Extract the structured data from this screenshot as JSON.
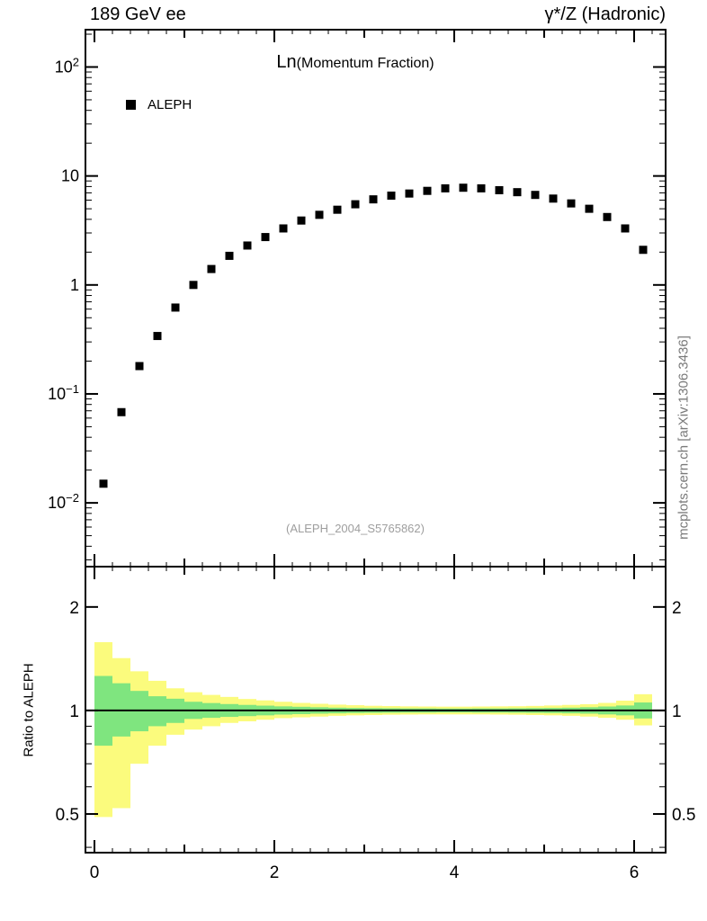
{
  "header": {
    "left": "189 GeV ee",
    "right": "γ*/Z (Hadronic)"
  },
  "plot_title": {
    "main": "Ln",
    "sub": "(Momentum Fraction)"
  },
  "legend": [
    {
      "label": "ALEPH",
      "marker": "filled-square",
      "color": "#000000"
    }
  ],
  "watermark": "(ALEPH_2004_S5765862)",
  "side_note": "mcplots.cern.ch [arXiv:1306.3436]",
  "ratio_ylabel": "Ratio to ALEPH",
  "colors": {
    "band_outer": "#fbfb7d",
    "band_inner": "#7fe57f",
    "marker": "#000000",
    "frame": "#000000",
    "watermark": "#9e9e9e",
    "side_note": "#7a7a7a"
  },
  "chart_data": [
    {
      "type": "scatter",
      "title": "Ln(Momentum Fraction)",
      "xlabel": "",
      "ylabel": "",
      "xlim": [
        -0.1,
        6.35
      ],
      "ylog": true,
      "ylim": [
        0.0026,
        220
      ],
      "xticks": [
        0,
        2,
        4,
        6
      ],
      "yticks": [
        100,
        10,
        1,
        0.1,
        0.01
      ],
      "grid": false,
      "legend_position": "top-left-inside",
      "series": [
        {
          "name": "ALEPH",
          "marker": "filled-square",
          "color": "#000000",
          "x": [
            0.1,
            0.3,
            0.5,
            0.7,
            0.9,
            1.1,
            1.3,
            1.5,
            1.7,
            1.9,
            2.1,
            2.3,
            2.5,
            2.7,
            2.9,
            3.1,
            3.3,
            3.5,
            3.7,
            3.9,
            4.1,
            4.3,
            4.5,
            4.7,
            4.9,
            5.1,
            5.3,
            5.5,
            5.7,
            5.9,
            6.1
          ],
          "y": [
            0.015,
            0.068,
            0.18,
            0.34,
            0.62,
            1.0,
            1.4,
            1.85,
            2.3,
            2.75,
            3.3,
            3.9,
            4.4,
            4.9,
            5.5,
            6.1,
            6.6,
            6.9,
            7.3,
            7.7,
            7.8,
            7.7,
            7.4,
            7.1,
            6.7,
            6.2,
            5.6,
            5.0,
            4.2,
            3.3,
            2.1
          ]
        }
      ]
    },
    {
      "type": "area",
      "title": "Ratio to ALEPH",
      "xlim": [
        -0.1,
        6.35
      ],
      "ylog": true,
      "ylim": [
        0.386,
        2.62
      ],
      "xticks": [
        0,
        2,
        4,
        6
      ],
      "yticks": [
        2,
        1,
        0.5
      ],
      "reference_line": 1,
      "bin_start": 0.0,
      "bin_width": 0.2,
      "bands": {
        "outer": {
          "name": "outer-uncertainty-band",
          "lo": [
            0.49,
            0.52,
            0.7,
            0.79,
            0.85,
            0.88,
            0.9,
            0.92,
            0.93,
            0.94,
            0.95,
            0.955,
            0.96,
            0.965,
            0.968,
            0.97,
            0.972,
            0.973,
            0.974,
            0.974,
            0.974,
            0.974,
            0.973,
            0.972,
            0.97,
            0.968,
            0.965,
            0.96,
            0.952,
            0.94,
            0.905
          ],
          "hi": [
            1.58,
            1.42,
            1.3,
            1.22,
            1.16,
            1.13,
            1.11,
            1.095,
            1.08,
            1.07,
            1.06,
            1.052,
            1.046,
            1.04,
            1.036,
            1.032,
            1.03,
            1.028,
            1.027,
            1.026,
            1.026,
            1.027,
            1.028,
            1.029,
            1.031,
            1.034,
            1.038,
            1.043,
            1.052,
            1.068,
            1.115
          ]
        },
        "inner": {
          "name": "inner-uncertainty-band",
          "lo": [
            0.79,
            0.84,
            0.87,
            0.9,
            0.92,
            0.945,
            0.952,
            0.958,
            0.963,
            0.968,
            0.973,
            0.976,
            0.979,
            0.981,
            0.983,
            0.984,
            0.985,
            0.986,
            0.986,
            0.987,
            0.987,
            0.986,
            0.986,
            0.985,
            0.984,
            0.983,
            0.981,
            0.979,
            0.974,
            0.968,
            0.948
          ],
          "hi": [
            1.26,
            1.2,
            1.14,
            1.1,
            1.082,
            1.06,
            1.051,
            1.044,
            1.038,
            1.033,
            1.028,
            1.025,
            1.022,
            1.019,
            1.017,
            1.016,
            1.015,
            1.014,
            1.014,
            1.013,
            1.013,
            1.014,
            1.014,
            1.015,
            1.016,
            1.017,
            1.019,
            1.022,
            1.027,
            1.034,
            1.055
          ]
        }
      }
    }
  ]
}
